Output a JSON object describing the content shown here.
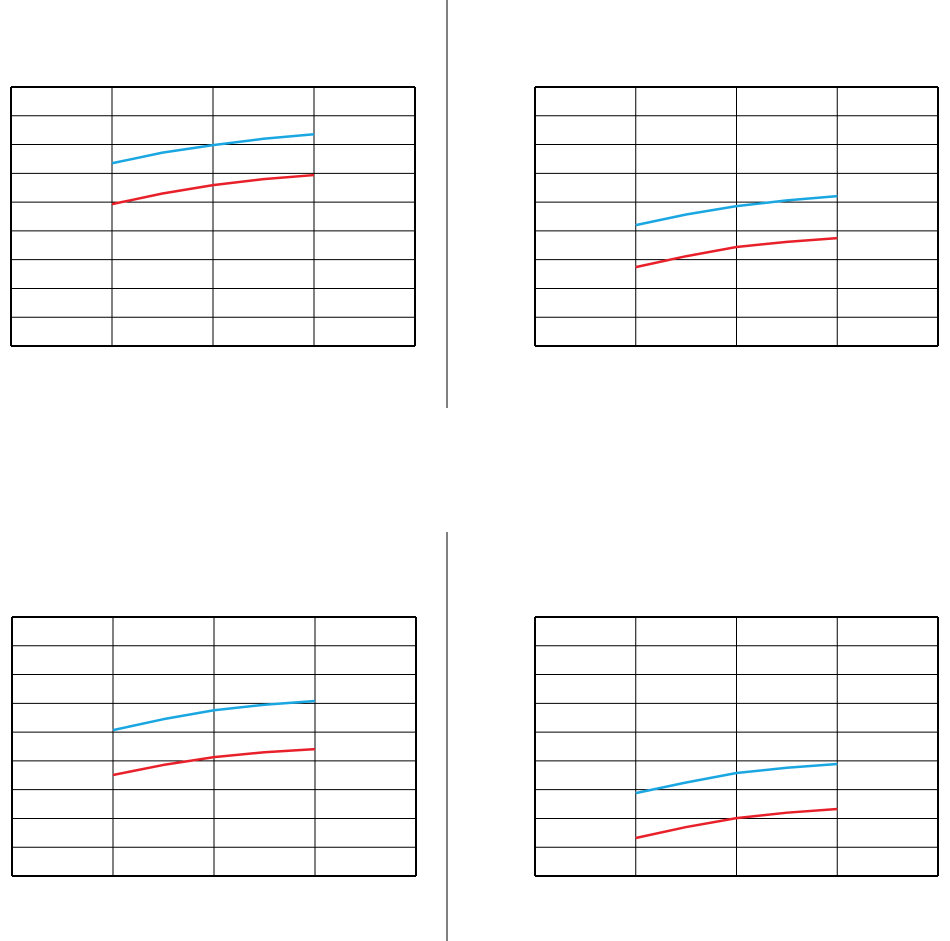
{
  "chart_data": [
    {
      "type": "line",
      "xlim": [
        0,
        4
      ],
      "ylim": [
        0,
        9
      ],
      "xticks": [
        0,
        1,
        2,
        3,
        4
      ],
      "yticks": [
        0,
        1,
        2,
        3,
        4,
        5,
        6,
        7,
        8,
        9
      ],
      "grid": true,
      "x": [
        1,
        1.5,
        2,
        2.5,
        3
      ],
      "series": [
        {
          "color": "#1aa7e1",
          "values": [
            6.35,
            6.72,
            6.98,
            7.2,
            7.36
          ]
        },
        {
          "color": "#e8202a",
          "values": [
            4.93,
            5.3,
            5.59,
            5.8,
            5.94
          ]
        }
      ]
    },
    {
      "type": "line",
      "xlim": [
        0,
        4
      ],
      "ylim": [
        0,
        9
      ],
      "xticks": [
        0,
        1,
        2,
        3,
        4
      ],
      "yticks": [
        0,
        1,
        2,
        3,
        4,
        5,
        6,
        7,
        8,
        9
      ],
      "grid": true,
      "x": [
        1,
        1.5,
        2,
        2.5,
        3
      ],
      "series": [
        {
          "color": "#1aa7e1",
          "values": [
            4.2,
            4.57,
            4.86,
            5.06,
            5.21
          ]
        },
        {
          "color": "#e8202a",
          "values": [
            2.74,
            3.12,
            3.44,
            3.62,
            3.75
          ]
        }
      ]
    },
    {
      "type": "line",
      "xlim": [
        0,
        4
      ],
      "ylim": [
        0,
        9
      ],
      "xticks": [
        0,
        1,
        2,
        3,
        4
      ],
      "yticks": [
        0,
        1,
        2,
        3,
        4,
        5,
        6,
        7,
        8,
        9
      ],
      "grid": true,
      "x": [
        1,
        1.5,
        2,
        2.5,
        3
      ],
      "series": [
        {
          "color": "#1aa7e1",
          "values": [
            5.07,
            5.45,
            5.76,
            5.95,
            6.08
          ]
        },
        {
          "color": "#e8202a",
          "values": [
            3.51,
            3.86,
            4.13,
            4.3,
            4.41
          ]
        }
      ]
    },
    {
      "type": "line",
      "xlim": [
        0,
        4
      ],
      "ylim": [
        0,
        9
      ],
      "xticks": [
        0,
        1,
        2,
        3,
        4
      ],
      "yticks": [
        0,
        1,
        2,
        3,
        4,
        5,
        6,
        7,
        8,
        9
      ],
      "grid": true,
      "x": [
        1,
        1.5,
        2,
        2.5,
        3
      ],
      "series": [
        {
          "color": "#1aa7e1",
          "values": [
            2.88,
            3.25,
            3.58,
            3.76,
            3.89
          ]
        },
        {
          "color": "#e8202a",
          "values": [
            1.32,
            1.7,
            2.01,
            2.2,
            2.33
          ]
        }
      ]
    }
  ]
}
